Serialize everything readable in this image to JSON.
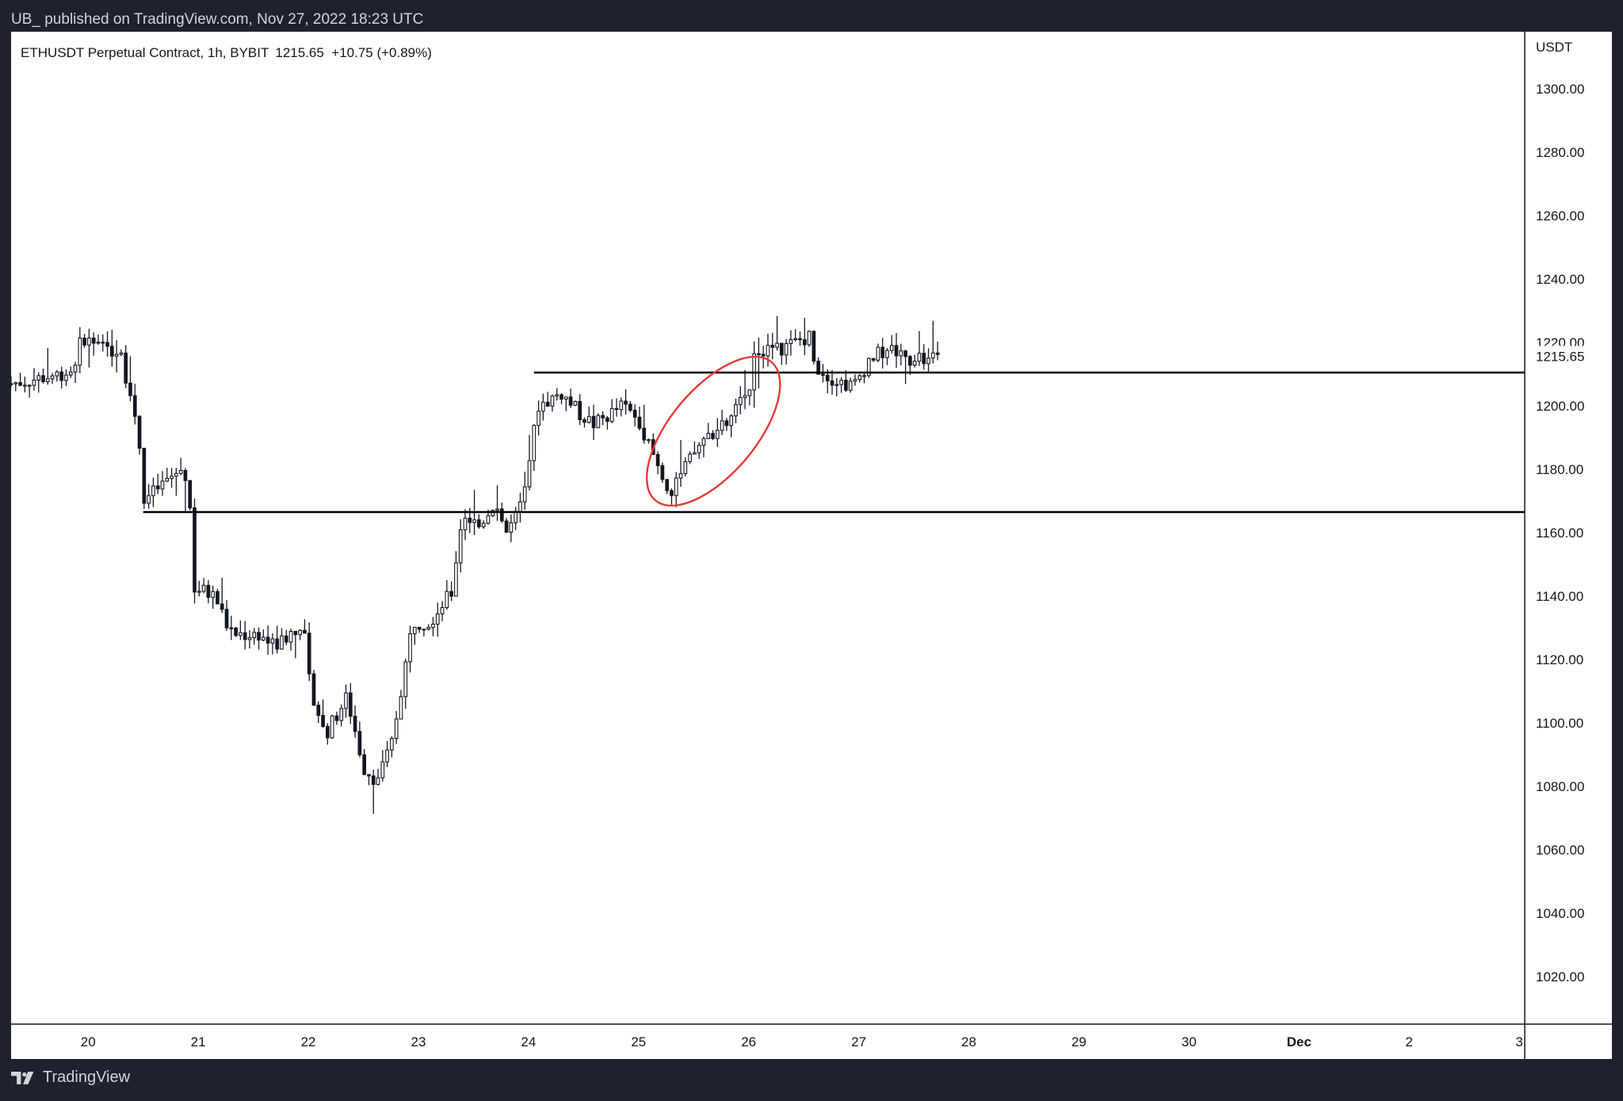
{
  "caption": "UB_ published on TradingView.com, Nov 27, 2022 18:23 UTC",
  "footer": {
    "brand": "TradingView",
    "logo_icon": "tradingview-logo-icon"
  },
  "header": {
    "symbol_info": "ETHUSDT Perpetual Contract, 1h, BYBIT",
    "price_info": "1215.65  +10.75 (+0.89%)"
  },
  "colors": {
    "page_bg": "#1e222d",
    "chart_bg": "#ffffff",
    "candles": "#131722",
    "annotation": "#e53935"
  },
  "chart_data": {
    "type": "candlestick",
    "unit_label": "USDT",
    "last_price_label": "1215.65",
    "last_price": 1215.65,
    "ylim": [
      1005,
      1318
    ],
    "y_ticks": [
      1300,
      1280,
      1260,
      1240,
      1220,
      1200,
      1180,
      1160,
      1140,
      1120,
      1100,
      1080,
      1060,
      1040,
      1020
    ],
    "x_axis": {
      "ticks": [
        {
          "label": "20",
          "day": 20
        },
        {
          "label": "21",
          "day": 21
        },
        {
          "label": "22",
          "day": 22
        },
        {
          "label": "23",
          "day": 23
        },
        {
          "label": "24",
          "day": 24
        },
        {
          "label": "25",
          "day": 25
        },
        {
          "label": "26",
          "day": 26
        },
        {
          "label": "27",
          "day": 27
        },
        {
          "label": "28",
          "day": 28
        },
        {
          "label": "29",
          "day": 29
        },
        {
          "label": "30",
          "day": 30
        },
        {
          "label": "Dec",
          "day": 31,
          "bold": true
        },
        {
          "label": "2",
          "day": 32
        },
        {
          "label": "3",
          "day": 33
        }
      ],
      "range": [
        19.3,
        33.05
      ]
    },
    "price_path": [
      [
        19.3,
        1207
      ],
      [
        19.6,
        1209
      ],
      [
        19.85,
        1211
      ],
      [
        19.95,
        1222
      ],
      [
        20.1,
        1218
      ],
      [
        20.3,
        1218
      ],
      [
        20.35,
        1208
      ],
      [
        20.45,
        1194
      ],
      [
        20.48,
        1182
      ],
      [
        20.5,
        1170
      ],
      [
        20.7,
        1176
      ],
      [
        20.85,
        1180
      ],
      [
        20.92,
        1176
      ],
      [
        20.94,
        1143
      ],
      [
        21.15,
        1140
      ],
      [
        21.3,
        1128
      ],
      [
        21.55,
        1128
      ],
      [
        21.7,
        1124
      ],
      [
        21.95,
        1132
      ],
      [
        22.0,
        1114
      ],
      [
        22.15,
        1096
      ],
      [
        22.35,
        1108
      ],
      [
        22.45,
        1094
      ],
      [
        22.5,
        1086
      ],
      [
        22.62,
        1082
      ],
      [
        22.75,
        1092
      ],
      [
        22.95,
        1132
      ],
      [
        23.1,
        1132
      ],
      [
        23.3,
        1141
      ],
      [
        23.4,
        1166
      ],
      [
        23.55,
        1162
      ],
      [
        23.7,
        1170
      ],
      [
        23.8,
        1160
      ],
      [
        23.92,
        1167
      ],
      [
        24.0,
        1178
      ],
      [
        24.08,
        1200
      ],
      [
        24.3,
        1204
      ],
      [
        24.45,
        1198
      ],
      [
        24.6,
        1194
      ],
      [
        24.85,
        1200
      ],
      [
        25.0,
        1196
      ],
      [
        25.15,
        1183
      ],
      [
        25.3,
        1172
      ],
      [
        25.45,
        1182
      ],
      [
        25.6,
        1190
      ],
      [
        25.8,
        1194
      ],
      [
        26.0,
        1205
      ],
      [
        26.05,
        1218
      ],
      [
        26.3,
        1218
      ],
      [
        26.55,
        1222
      ],
      [
        26.62,
        1212
      ],
      [
        26.8,
        1208
      ],
      [
        26.95,
        1206
      ],
      [
        27.1,
        1215
      ],
      [
        27.3,
        1218
      ],
      [
        27.5,
        1214
      ],
      [
        27.72,
        1216
      ]
    ],
    "horizontal_lines": [
      {
        "price": 1210.5,
        "x_start": 24.05,
        "x_end": 33.5
      },
      {
        "price": 1166.5,
        "x_start": 20.5,
        "x_end": 33.45
      }
    ],
    "annotation": {
      "type": "ellipse",
      "center": [
        25.68,
        1192
      ],
      "radius_days": 0.82,
      "radius_price": 13.5,
      "rotation_deg": -50
    }
  }
}
